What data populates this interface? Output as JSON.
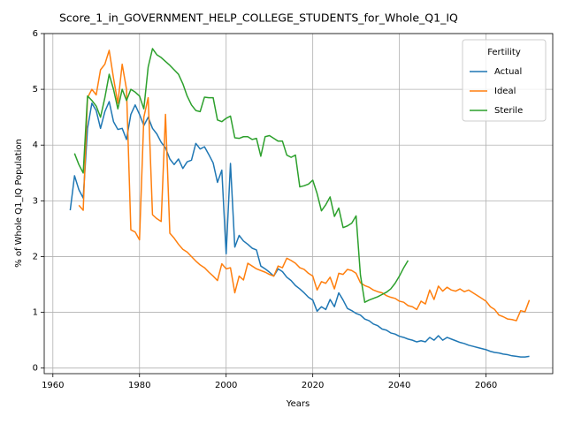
{
  "chart_data": {
    "type": "line",
    "title": "Score_1_in_GOVERNMENT_HELP_COLLEGE_STUDENTS_for_Whole_Q1_IQ",
    "xlabel": "Years",
    "ylabel": "% of Whole Q1_IQ Population",
    "legend_title": "Fertility",
    "legend": "upper right",
    "grid": true,
    "xlim": [
      1958,
      2075.4
    ],
    "ylim": [
      -0.1,
      6.0
    ],
    "xticks": [
      1960,
      1980,
      2000,
      2020,
      2040,
      2060
    ],
    "yticks": [
      0,
      1,
      2,
      3,
      4,
      5,
      6
    ],
    "x": [
      1964,
      1965,
      1966,
      1967,
      1968,
      1969,
      1970,
      1971,
      1972,
      1973,
      1974,
      1975,
      1976,
      1977,
      1978,
      1979,
      1980,
      1981,
      1982,
      1983,
      1984,
      1985,
      1986,
      1987,
      1988,
      1989,
      1990,
      1991,
      1992,
      1993,
      1994,
      1995,
      1996,
      1997,
      1998,
      1999,
      2000,
      2001,
      2002,
      2003,
      2004,
      2005,
      2006,
      2007,
      2008,
      2009,
      2010,
      2011,
      2012,
      2013,
      2014,
      2015,
      2016,
      2017,
      2018,
      2019,
      2020,
      2021,
      2022,
      2023,
      2024,
      2025,
      2026,
      2027,
      2028,
      2029,
      2030,
      2031,
      2032,
      2033,
      2034,
      2035,
      2036,
      2037,
      2038,
      2039,
      2040,
      2041,
      2042,
      2043,
      2044,
      2045,
      2046,
      2047,
      2048,
      2049,
      2050,
      2051,
      2052,
      2053,
      2054,
      2055,
      2056,
      2057,
      2058,
      2059,
      2060,
      2061,
      2062,
      2063,
      2064,
      2065,
      2066,
      2067,
      2068,
      2069,
      2070
    ],
    "series": [
      {
        "name": "Actual",
        "color": "#1f77b4",
        "values": [
          2.83,
          3.45,
          3.2,
          3.05,
          4.3,
          4.75,
          4.62,
          4.3,
          4.6,
          4.78,
          4.42,
          4.28,
          4.3,
          4.1,
          4.55,
          4.72,
          4.55,
          4.35,
          4.5,
          4.3,
          4.2,
          4.05,
          3.95,
          3.75,
          3.65,
          3.75,
          3.58,
          3.7,
          3.73,
          4.03,
          3.93,
          3.97,
          3.83,
          3.68,
          3.33,
          3.55,
          2.05,
          3.67,
          2.17,
          2.38,
          2.28,
          2.22,
          2.15,
          2.12,
          1.83,
          1.78,
          1.72,
          1.65,
          1.78,
          1.73,
          1.63,
          1.57,
          1.48,
          1.42,
          1.35,
          1.27,
          1.22,
          1.02,
          1.1,
          1.05,
          1.23,
          1.1,
          1.35,
          1.22,
          1.07,
          1.03,
          0.98,
          0.95,
          0.88,
          0.85,
          0.79,
          0.76,
          0.7,
          0.68,
          0.63,
          0.61,
          0.57,
          0.55,
          0.52,
          0.5,
          0.47,
          0.49,
          0.47,
          0.55,
          0.5,
          0.58,
          0.5,
          0.55,
          0.52,
          0.49,
          0.46,
          0.44,
          0.41,
          0.39,
          0.37,
          0.35,
          0.33,
          0.3,
          0.28,
          0.27,
          0.25,
          0.24,
          0.22,
          0.21,
          0.2,
          0.2,
          0.21
        ]
      },
      {
        "name": "Ideal",
        "color": "#ff7f0e",
        "values": [
          null,
          null,
          2.92,
          2.83,
          4.85,
          5.0,
          4.9,
          5.35,
          5.45,
          5.7,
          5.2,
          4.75,
          5.45,
          5.0,
          2.48,
          2.44,
          2.3,
          4.5,
          4.85,
          2.75,
          2.68,
          2.63,
          4.55,
          2.42,
          2.33,
          2.22,
          2.13,
          2.08,
          2.0,
          1.92,
          1.85,
          1.8,
          1.72,
          1.65,
          1.57,
          1.87,
          1.78,
          1.8,
          1.35,
          1.65,
          1.58,
          1.88,
          1.83,
          1.78,
          1.75,
          1.72,
          1.68,
          1.65,
          1.83,
          1.8,
          1.97,
          1.93,
          1.88,
          1.8,
          1.77,
          1.7,
          1.65,
          1.4,
          1.55,
          1.52,
          1.63,
          1.42,
          1.7,
          1.68,
          1.77,
          1.75,
          1.7,
          1.53,
          1.48,
          1.45,
          1.4,
          1.37,
          1.35,
          1.3,
          1.27,
          1.25,
          1.2,
          1.18,
          1.12,
          1.1,
          1.05,
          1.2,
          1.15,
          1.4,
          1.23,
          1.47,
          1.38,
          1.45,
          1.4,
          1.38,
          1.42,
          1.37,
          1.4,
          1.35,
          1.3,
          1.25,
          1.2,
          1.1,
          1.05,
          0.95,
          0.92,
          0.88,
          0.87,
          0.85,
          1.03,
          1.01,
          1.22
        ]
      },
      {
        "name": "Sterile",
        "color": "#2ca02c",
        "values": [
          null,
          3.85,
          3.65,
          3.5,
          4.88,
          4.8,
          4.7,
          4.5,
          4.85,
          5.27,
          5.0,
          4.65,
          5.0,
          4.8,
          5.0,
          4.95,
          4.88,
          4.65,
          5.4,
          5.73,
          5.62,
          5.57,
          5.5,
          5.43,
          5.35,
          5.27,
          5.1,
          4.88,
          4.72,
          4.62,
          4.6,
          4.86,
          4.85,
          4.85,
          4.45,
          4.42,
          4.48,
          4.52,
          4.13,
          4.12,
          4.15,
          4.15,
          4.1,
          4.12,
          3.8,
          4.15,
          4.17,
          4.12,
          4.07,
          4.07,
          3.82,
          3.78,
          3.82,
          3.25,
          3.27,
          3.3,
          3.37,
          3.13,
          2.82,
          2.93,
          3.07,
          2.72,
          2.87,
          2.52,
          2.55,
          2.6,
          2.73,
          1.67,
          1.18,
          1.22,
          1.25,
          1.28,
          1.32,
          1.36,
          1.42,
          1.52,
          1.65,
          1.8,
          1.93,
          null,
          null,
          null,
          null,
          null,
          null,
          null,
          null,
          null,
          null,
          null,
          null,
          null,
          null,
          null,
          null,
          null,
          null,
          null,
          null,
          null,
          null,
          null,
          null,
          null,
          null,
          null,
          null
        ]
      }
    ]
  }
}
